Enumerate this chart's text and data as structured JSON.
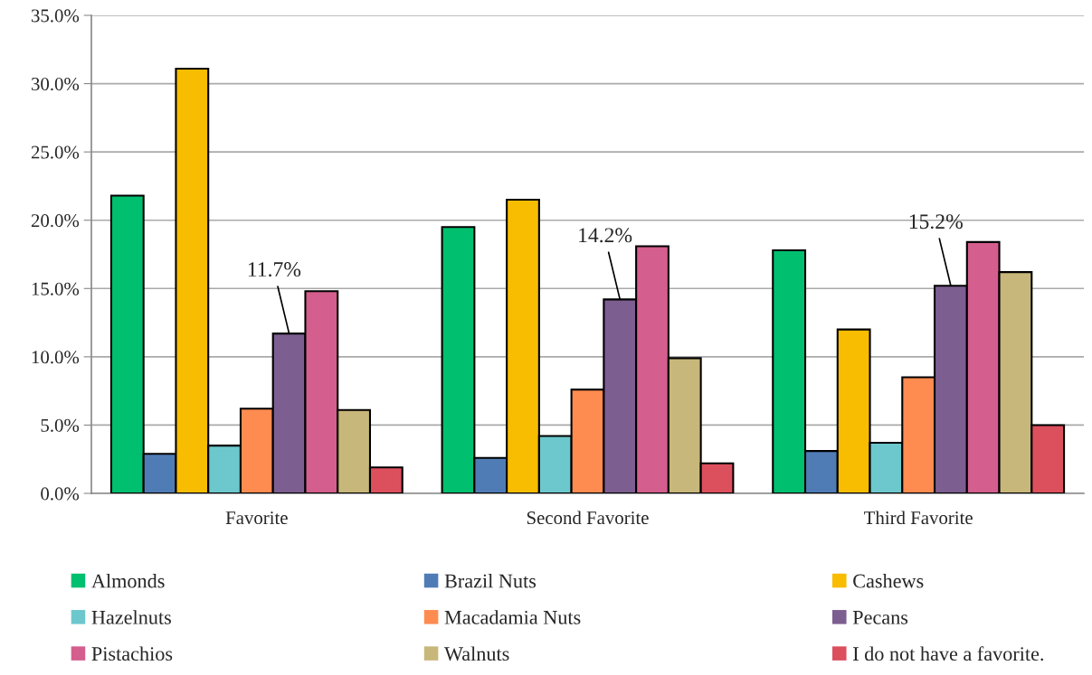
{
  "chart_data": {
    "type": "bar",
    "categories": [
      "Favorite",
      "Second Favorite",
      "Third Favorite"
    ],
    "series": [
      {
        "name": "Almonds",
        "color": "#00bf6f",
        "values": [
          21.8,
          19.5,
          17.8
        ]
      },
      {
        "name": "Brazil Nuts",
        "color": "#507cb6",
        "values": [
          2.9,
          2.6,
          3.1
        ]
      },
      {
        "name": "Cashews",
        "color": "#f8bc00",
        "values": [
          31.1,
          21.5,
          12.0
        ]
      },
      {
        "name": "Hazelnuts",
        "color": "#6cc8cc",
        "values": [
          3.5,
          4.2,
          3.7
        ]
      },
      {
        "name": "Macadamia Nuts",
        "color": "#fe8b50",
        "values": [
          6.2,
          7.6,
          8.5
        ]
      },
      {
        "name": "Pecans",
        "color": "#7d5e91",
        "values": [
          11.7,
          14.2,
          15.2
        ],
        "value_labels": [
          "11.7%",
          "14.2%",
          "15.2%"
        ]
      },
      {
        "name": "Pistachios",
        "color": "#d45e8d",
        "values": [
          14.8,
          18.1,
          18.4
        ]
      },
      {
        "name": "Walnuts",
        "color": "#c8b77a",
        "values": [
          6.1,
          9.9,
          16.2
        ]
      },
      {
        "name": "I do not have a favorite.",
        "color": "#dc4f5d",
        "values": [
          1.9,
          2.2,
          5.0
        ]
      }
    ],
    "ylim": [
      0,
      35
    ],
    "yticks": [
      {
        "value": 0,
        "label": "0.0%"
      },
      {
        "value": 5,
        "label": "5.0%"
      },
      {
        "value": 10,
        "label": "10.0%"
      },
      {
        "value": 15,
        "label": "15.0%"
      },
      {
        "value": 20,
        "label": "20.0%"
      },
      {
        "value": 25,
        "label": "25.0%"
      },
      {
        "value": 30,
        "label": "30.0%"
      },
      {
        "value": 35,
        "label": "35.0%"
      }
    ],
    "grid": "y",
    "legend": "bottom"
  }
}
